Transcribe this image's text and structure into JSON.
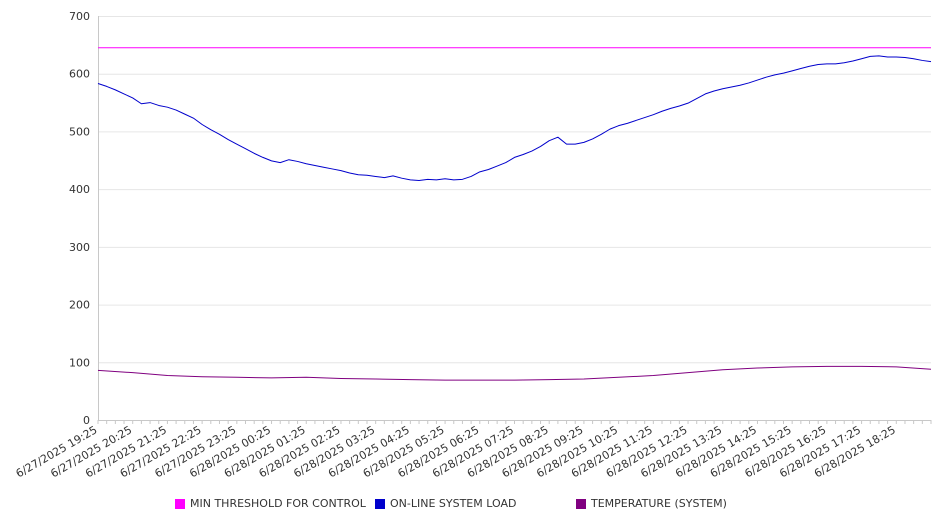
{
  "chart_data": {
    "type": "line",
    "title": "",
    "xlabel": "",
    "ylabel": "",
    "ylim": [
      0,
      700
    ],
    "yticks": [
      0,
      100,
      200,
      300,
      400,
      500,
      600,
      700
    ],
    "grid": true,
    "legend_position": "bottom",
    "x_start": "6/27/2025 19:25",
    "x_end": "6/28/2025 19:25",
    "x_tick_labels": [
      "6/27/2025 19:25",
      "6/27/2025 20:25",
      "6/27/2025 21:25",
      "6/27/2025 22:25",
      "6/27/2025 23:25",
      "6/28/2025 00:25",
      "6/28/2025 01:25",
      "6/28/2025 02:25",
      "6/28/2025 03:25",
      "6/28/2025 04:25",
      "6/28/2025 05:25",
      "6/28/2025 06:25",
      "6/28/2025 07:25",
      "6/28/2025 08:25",
      "6/28/2025 09:25",
      "6/28/2025 10:25",
      "6/28/2025 11:25",
      "6/28/2025 12:25",
      "6/28/2025 13:25",
      "6/28/2025 14:25",
      "6/28/2025 15:25",
      "6/28/2025 16:25",
      "6/28/2025 17:25",
      "6/28/2025 18:25"
    ],
    "series": [
      {
        "name": "MIN THRESHOLD FOR CONTROL",
        "color": "#ff00ff",
        "points": [
          [
            "6/27/2025 19:25",
            645
          ],
          [
            "6/28/2025 19:25",
            645
          ]
        ]
      },
      {
        "name": "ON-LINE SYSTEM LOAD",
        "color": "#0000cc",
        "points": [
          [
            "6/27/2025 19:25",
            583
          ],
          [
            "6/27/2025 19:40",
            578
          ],
          [
            "6/27/2025 19:55",
            572
          ],
          [
            "6/27/2025 20:10",
            565
          ],
          [
            "6/27/2025 20:25",
            558
          ],
          [
            "6/27/2025 20:40",
            548
          ],
          [
            "6/27/2025 20:55",
            550
          ],
          [
            "6/27/2025 21:10",
            545
          ],
          [
            "6/27/2025 21:25",
            542
          ],
          [
            "6/27/2025 21:40",
            537
          ],
          [
            "6/27/2025 21:55",
            530
          ],
          [
            "6/27/2025 22:10",
            523
          ],
          [
            "6/27/2025 22:25",
            512
          ],
          [
            "6/27/2025 22:40",
            503
          ],
          [
            "6/27/2025 22:55",
            495
          ],
          [
            "6/27/2025 23:10",
            486
          ],
          [
            "6/27/2025 23:25",
            478
          ],
          [
            "6/27/2025 23:40",
            470
          ],
          [
            "6/27/2025 23:55",
            462
          ],
          [
            "6/28/2025 00:10",
            455
          ],
          [
            "6/28/2025 00:25",
            449
          ],
          [
            "6/28/2025 00:40",
            446
          ],
          [
            "6/28/2025 00:55",
            451
          ],
          [
            "6/28/2025 01:10",
            448
          ],
          [
            "6/28/2025 01:25",
            444
          ],
          [
            "6/28/2025 01:40",
            441
          ],
          [
            "6/28/2025 01:55",
            438
          ],
          [
            "6/28/2025 02:10",
            435
          ],
          [
            "6/28/2025 02:25",
            432
          ],
          [
            "6/28/2025 02:40",
            428
          ],
          [
            "6/28/2025 02:55",
            425
          ],
          [
            "6/28/2025 03:10",
            424
          ],
          [
            "6/28/2025 03:25",
            422
          ],
          [
            "6/28/2025 03:40",
            420
          ],
          [
            "6/28/2025 03:55",
            423
          ],
          [
            "6/28/2025 04:10",
            419
          ],
          [
            "6/28/2025 04:25",
            416
          ],
          [
            "6/28/2025 04:40",
            415
          ],
          [
            "6/28/2025 04:55",
            417
          ],
          [
            "6/28/2025 05:10",
            416
          ],
          [
            "6/28/2025 05:25",
            418
          ],
          [
            "6/28/2025 05:40",
            416
          ],
          [
            "6/28/2025 05:55",
            417
          ],
          [
            "6/28/2025 06:10",
            422
          ],
          [
            "6/28/2025 06:25",
            430
          ],
          [
            "6/28/2025 06:40",
            434
          ],
          [
            "6/28/2025 06:55",
            440
          ],
          [
            "6/28/2025 07:10",
            446
          ],
          [
            "6/28/2025 07:25",
            455
          ],
          [
            "6/28/2025 07:40",
            460
          ],
          [
            "6/28/2025 07:55",
            466
          ],
          [
            "6/28/2025 08:10",
            474
          ],
          [
            "6/28/2025 08:25",
            484
          ],
          [
            "6/28/2025 08:40",
            490
          ],
          [
            "6/28/2025 08:55",
            478
          ],
          [
            "6/28/2025 09:10",
            478
          ],
          [
            "6/28/2025 09:25",
            481
          ],
          [
            "6/28/2025 09:40",
            487
          ],
          [
            "6/28/2025 09:55",
            495
          ],
          [
            "6/28/2025 10:10",
            504
          ],
          [
            "6/28/2025 10:25",
            510
          ],
          [
            "6/28/2025 10:40",
            514
          ],
          [
            "6/28/2025 10:55",
            519
          ],
          [
            "6/28/2025 11:10",
            524
          ],
          [
            "6/28/2025 11:25",
            529
          ],
          [
            "6/28/2025 11:40",
            535
          ],
          [
            "6/28/2025 11:55",
            540
          ],
          [
            "6/28/2025 12:10",
            544
          ],
          [
            "6/28/2025 12:25",
            549
          ],
          [
            "6/28/2025 12:40",
            557
          ],
          [
            "6/28/2025 12:55",
            565
          ],
          [
            "6/28/2025 13:10",
            570
          ],
          [
            "6/28/2025 13:25",
            574
          ],
          [
            "6/28/2025 13:40",
            577
          ],
          [
            "6/28/2025 13:55",
            580
          ],
          [
            "6/28/2025 14:10",
            584
          ],
          [
            "6/28/2025 14:25",
            589
          ],
          [
            "6/28/2025 14:40",
            594
          ],
          [
            "6/28/2025 14:55",
            598
          ],
          [
            "6/28/2025 15:10",
            601
          ],
          [
            "6/28/2025 15:25",
            605
          ],
          [
            "6/28/2025 15:40",
            609
          ],
          [
            "6/28/2025 15:55",
            613
          ],
          [
            "6/28/2025 16:10",
            616
          ],
          [
            "6/28/2025 16:25",
            617
          ],
          [
            "6/28/2025 16:40",
            617
          ],
          [
            "6/28/2025 16:55",
            619
          ],
          [
            "6/28/2025 17:10",
            622
          ],
          [
            "6/28/2025 17:25",
            626
          ],
          [
            "6/28/2025 17:40",
            630
          ],
          [
            "6/28/2025 17:55",
            631
          ],
          [
            "6/28/2025 18:10",
            629
          ],
          [
            "6/28/2025 18:25",
            629
          ],
          [
            "6/28/2025 18:40",
            628
          ],
          [
            "6/28/2025 18:55",
            626
          ],
          [
            "6/28/2025 19:10",
            623
          ],
          [
            "6/28/2025 19:25",
            621
          ]
        ]
      },
      {
        "name": "TEMPERATURE (SYSTEM)",
        "color": "#800080",
        "points": [
          [
            "6/27/2025 19:25",
            86
          ],
          [
            "6/27/2025 20:25",
            82
          ],
          [
            "6/27/2025 21:25",
            77
          ],
          [
            "6/27/2025 22:25",
            75
          ],
          [
            "6/27/2025 23:25",
            74
          ],
          [
            "6/28/2025 00:25",
            73
          ],
          [
            "6/28/2025 01:25",
            74
          ],
          [
            "6/28/2025 02:25",
            72
          ],
          [
            "6/28/2025 03:25",
            71
          ],
          [
            "6/28/2025 04:25",
            70
          ],
          [
            "6/28/2025 05:25",
            69
          ],
          [
            "6/28/2025 06:25",
            69
          ],
          [
            "6/28/2025 07:25",
            69
          ],
          [
            "6/28/2025 08:25",
            70
          ],
          [
            "6/28/2025 09:25",
            71
          ],
          [
            "6/28/2025 10:25",
            74
          ],
          [
            "6/28/2025 11:25",
            77
          ],
          [
            "6/28/2025 12:25",
            82
          ],
          [
            "6/28/2025 13:25",
            87
          ],
          [
            "6/28/2025 14:25",
            90
          ],
          [
            "6/28/2025 15:25",
            92
          ],
          [
            "6/28/2025 16:25",
            93
          ],
          [
            "6/28/2025 17:25",
            93
          ],
          [
            "6/28/2025 18:25",
            92
          ],
          [
            "6/28/2025 19:25",
            88
          ]
        ]
      }
    ]
  }
}
